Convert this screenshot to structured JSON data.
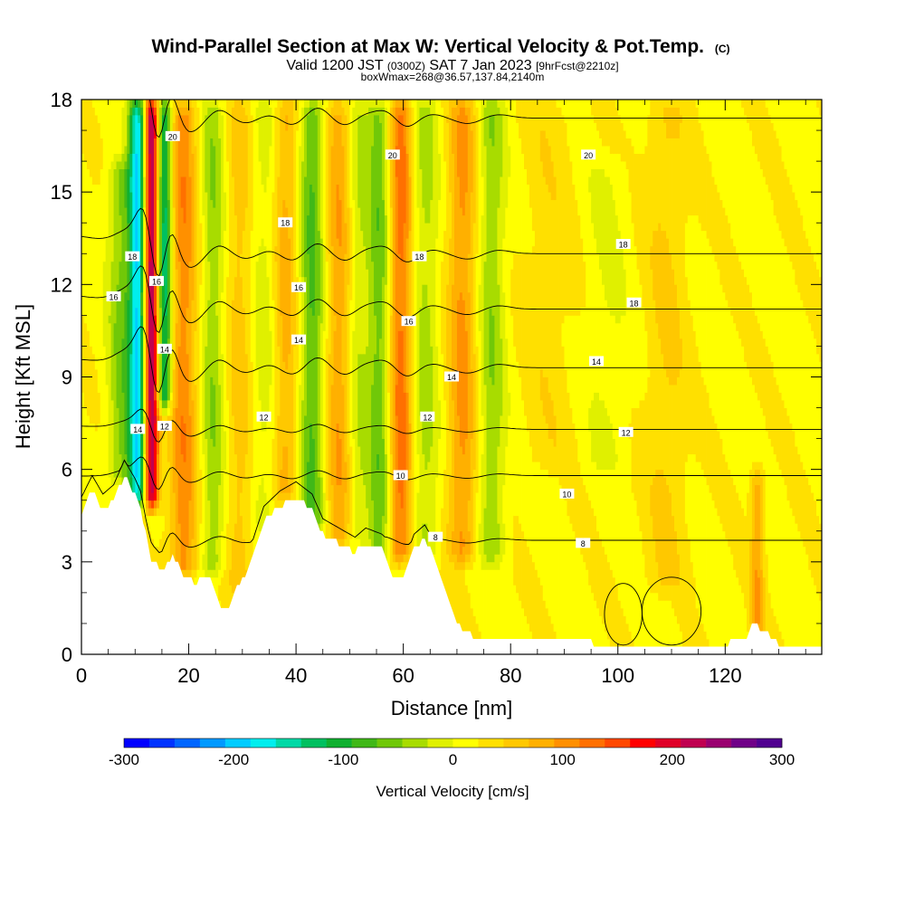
{
  "header": {
    "title": "Wind-Parallel Section at Max W: Vertical Velocity & Pot.Temp.",
    "title_mark": "(C)",
    "valid_prefix": "Valid 1200 JST",
    "valid_utc": "(0300Z)",
    "valid_date": "SAT 7 Jan 2023",
    "forecast": "[9hrFcst@2210z]",
    "box_info": "boxWmax=268@36.57,137.84,2140m"
  },
  "chart_data": {
    "type": "heatmap",
    "xlabel": "Distance [nm]",
    "ylabel": "Height [Kft MSL]",
    "xlim": [
      0,
      138
    ],
    "ylim": [
      0,
      18
    ],
    "x_ticks": [
      "0",
      "20",
      "40",
      "60",
      "80",
      "100",
      "120"
    ],
    "y_ticks": [
      "0",
      "3",
      "6",
      "9",
      "12",
      "15",
      "18"
    ],
    "colorbar": {
      "label": "Vertical Velocity [cm/s]",
      "range": [
        -300,
        300
      ],
      "tick_labels": [
        "-300",
        "-200",
        "-100",
        "0",
        "100",
        "200",
        "300"
      ],
      "colors": [
        "#0000ff",
        "#0033ff",
        "#0066ff",
        "#0099ff",
        "#00ccff",
        "#00eeee",
        "#00d9a6",
        "#00c060",
        "#10b030",
        "#40b818",
        "#70c808",
        "#a8dc00",
        "#e0f000",
        "#ffff00",
        "#ffe000",
        "#ffc800",
        "#ffb000",
        "#ff9000",
        "#ff7000",
        "#ff4800",
        "#ff0000",
        "#e00028",
        "#c00050",
        "#9a0070",
        "#700088",
        "#500090"
      ]
    },
    "terrain_kft": [
      [
        0,
        4.6
      ],
      [
        2,
        5.3
      ],
      [
        4,
        4.7
      ],
      [
        6,
        5.0
      ],
      [
        8,
        5.8
      ],
      [
        10,
        5.2
      ],
      [
        11,
        4.8
      ],
      [
        12,
        3.9
      ],
      [
        13,
        3.1
      ],
      [
        15,
        2.7
      ],
      [
        17,
        3.2
      ],
      [
        19,
        2.6
      ],
      [
        21,
        2.3
      ],
      [
        24,
        2.6
      ],
      [
        26,
        1.6
      ],
      [
        27,
        1.4
      ],
      [
        29,
        2.2
      ],
      [
        31,
        2.7
      ],
      [
        34,
        4.3
      ],
      [
        37,
        4.8
      ],
      [
        40,
        5.1
      ],
      [
        43,
        4.7
      ],
      [
        45,
        3.9
      ],
      [
        48,
        3.6
      ],
      [
        51,
        3.3
      ],
      [
        53,
        3.6
      ],
      [
        56,
        3.4
      ],
      [
        58,
        2.6
      ],
      [
        60,
        2.4
      ],
      [
        62,
        3.4
      ],
      [
        64,
        3.7
      ],
      [
        66,
        3.1
      ],
      [
        68,
        2.0
      ],
      [
        70,
        1.0
      ],
      [
        73,
        0.6
      ],
      [
        76,
        0.4
      ],
      [
        90,
        0.4
      ],
      [
        100,
        0.35
      ],
      [
        110,
        0.35
      ],
      [
        120,
        0.35
      ],
      [
        124,
        0.5
      ],
      [
        125,
        1.0
      ],
      [
        127,
        0.8
      ],
      [
        130,
        0.35
      ],
      [
        138,
        0.35
      ]
    ],
    "w_features": [
      {
        "x": 10.5,
        "zmin": 4.8,
        "zmax": 18,
        "w": -200,
        "width": 1.6
      },
      {
        "x": 13.0,
        "zmin": 4.8,
        "zmax": 18,
        "w": 230,
        "width": 1.4
      },
      {
        "x": 15.5,
        "zmin": 8.0,
        "zmax": 18,
        "w": -160,
        "width": 1.4
      },
      {
        "x": 7.5,
        "zmin": 5.5,
        "zmax": 16,
        "w": -70,
        "width": 2.5
      },
      {
        "x": 19.0,
        "zmin": 2.5,
        "zmax": 18,
        "w": 90,
        "width": 2.6
      },
      {
        "x": 24.5,
        "zmin": 2.5,
        "zmax": 18,
        "w": -60,
        "width": 2.2
      },
      {
        "x": 29.5,
        "zmin": 2.0,
        "zmax": 18,
        "w": 40,
        "width": 2.5
      },
      {
        "x": 34.0,
        "zmin": 4.0,
        "zmax": 18,
        "w": -30,
        "width": 2.5
      },
      {
        "x": 38.0,
        "zmin": 5.0,
        "zmax": 18,
        "w": 60,
        "width": 2.2
      },
      {
        "x": 43.0,
        "zmin": 4.0,
        "zmax": 18,
        "w": -90,
        "width": 2.2
      },
      {
        "x": 48.0,
        "zmin": 3.5,
        "zmax": 18,
        "w": 70,
        "width": 2.4
      },
      {
        "x": 51.5,
        "zmin": 3.5,
        "zmax": 18,
        "w": -40,
        "width": 2.0
      },
      {
        "x": 55.5,
        "zmin": 3.0,
        "zmax": 18,
        "w": -80,
        "width": 2.2
      },
      {
        "x": 59.5,
        "zmin": 3.0,
        "zmax": 18,
        "w": 110,
        "width": 2.2
      },
      {
        "x": 64.0,
        "zmin": 3.0,
        "zmax": 18,
        "w": -50,
        "width": 2.5
      },
      {
        "x": 71.0,
        "zmin": 3.0,
        "zmax": 18,
        "w": 80,
        "width": 2.6
      },
      {
        "x": 76.5,
        "zmin": 3.0,
        "zmax": 18,
        "w": -60,
        "width": 2.5
      },
      {
        "x": 87.0,
        "zmin": 6.0,
        "zmax": 18,
        "w": 20,
        "width": 5.0
      },
      {
        "x": 98.0,
        "zmin": 6.0,
        "zmax": 16,
        "w": -20,
        "width": 4.0
      },
      {
        "x": 109.0,
        "zmin": 2.0,
        "zmax": 18,
        "w": 30,
        "width": 4.0
      },
      {
        "x": 126.0,
        "zmin": 0.5,
        "zmax": 6,
        "w": 70,
        "width": 1.2
      }
    ],
    "theta_contours": [
      {
        "level": 8,
        "base_kft": 3.7
      },
      {
        "level": 10,
        "base_kft": 5.8
      },
      {
        "level": 12,
        "base_kft": 7.3
      },
      {
        "level": 14,
        "base_kft": 9.3
      },
      {
        "level": 16,
        "base_kft": 11.2
      },
      {
        "level": 18,
        "base_kft": 13.0
      },
      {
        "level": 20,
        "base_kft": 17.4
      }
    ],
    "contour_labels": [
      {
        "text": "20",
        "x": 17.0,
        "y": 16.8
      },
      {
        "text": "20",
        "x": 58.0,
        "y": 16.2
      },
      {
        "text": "20",
        "x": 94.5,
        "y": 16.2
      },
      {
        "text": "18",
        "x": 38.0,
        "y": 14.0
      },
      {
        "text": "18",
        "x": 63.0,
        "y": 12.9
      },
      {
        "text": "18",
        "x": 101.0,
        "y": 13.3
      },
      {
        "text": "18",
        "x": 103.0,
        "y": 11.4
      },
      {
        "text": "18",
        "x": 9.5,
        "y": 12.9
      },
      {
        "text": "16",
        "x": 14.0,
        "y": 12.1
      },
      {
        "text": "16",
        "x": 6.0,
        "y": 11.6
      },
      {
        "text": "16",
        "x": 40.5,
        "y": 11.9
      },
      {
        "text": "16",
        "x": 61.0,
        "y": 10.8
      },
      {
        "text": "14",
        "x": 15.5,
        "y": 9.9
      },
      {
        "text": "14",
        "x": 40.5,
        "y": 10.2
      },
      {
        "text": "14",
        "x": 69.0,
        "y": 9.0
      },
      {
        "text": "14",
        "x": 96.0,
        "y": 9.5
      },
      {
        "text": "14",
        "x": 10.5,
        "y": 7.3
      },
      {
        "text": "12",
        "x": 15.5,
        "y": 7.4
      },
      {
        "text": "12",
        "x": 34.0,
        "y": 7.7
      },
      {
        "text": "12",
        "x": 64.5,
        "y": 7.7
      },
      {
        "text": "12",
        "x": 101.5,
        "y": 7.2
      },
      {
        "text": "10",
        "x": 59.5,
        "y": 5.8
      },
      {
        "text": "10",
        "x": 90.5,
        "y": 5.2
      },
      {
        "text": "8",
        "x": 66.0,
        "y": 3.8
      },
      {
        "text": "8",
        "x": 93.5,
        "y": 3.6
      }
    ],
    "closed_contours": [
      {
        "cx": 101.0,
        "cy": 1.3,
        "rx": 3.5,
        "ry": 1.0
      },
      {
        "cx": 110.0,
        "cy": 1.4,
        "rx": 5.5,
        "ry": 1.1
      }
    ]
  }
}
